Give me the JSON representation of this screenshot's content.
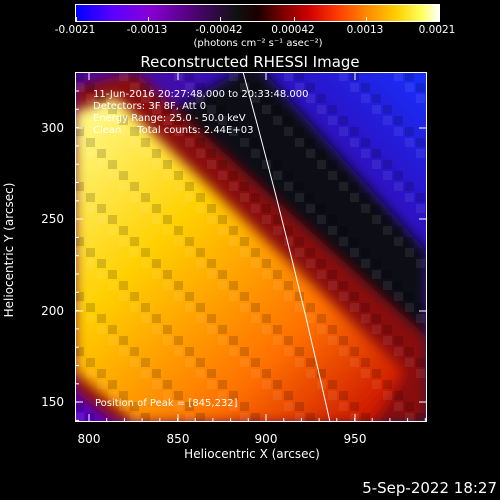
{
  "colorbar": {
    "ticks": [
      "-0.0021",
      "-0.0013",
      "-0.00042",
      "0.00042",
      "0.0013",
      "0.0021"
    ],
    "units": "(photons cm⁻² s⁻¹ asec⁻²)"
  },
  "title": "Reconstructed RHESSI Image",
  "annotations": {
    "time_range": "11-Jun-2016 20:27:48.000 to 20:33:48.000",
    "detectors": "Detectors: 3F 8F, Att 0",
    "energy_range": "Energy Range: 25.0 - 50.0 keV",
    "algorithm": "Clean     Total counts: 2.44E+03",
    "peak": "Position of Peak = [845,232]"
  },
  "axes": {
    "xlabel": "Heliocentric X (arcsec)",
    "ylabel": "Heliocentric Y (arcsec)",
    "x_ticks": [
      "800",
      "850",
      "900",
      "950"
    ],
    "y_ticks": [
      "300",
      "250",
      "200",
      "150"
    ],
    "x_range": [
      796,
      984
    ],
    "y_range": [
      136,
      323
    ]
  },
  "footer": {
    "date": "5-Sep-2022 18:27"
  }
}
